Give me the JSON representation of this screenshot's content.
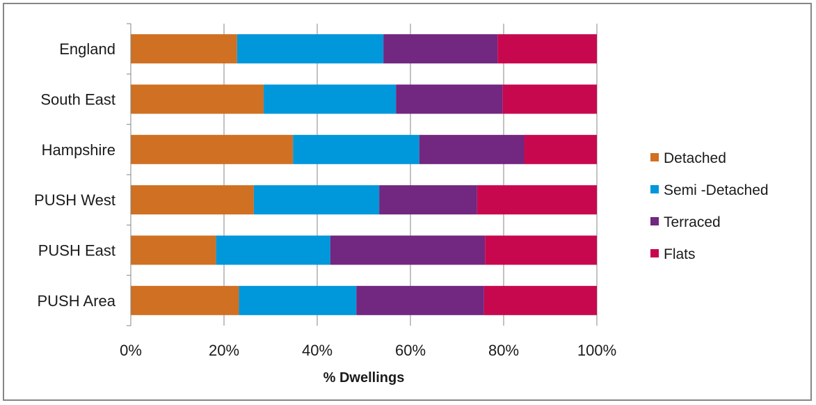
{
  "chart_data": {
    "type": "bar",
    "orientation": "horizontal",
    "stacked": "percent",
    "categories": [
      "England",
      "South East",
      "Hampshire",
      "PUSH West",
      "PUSH East",
      "PUSH Area"
    ],
    "series": [
      {
        "name": "Detached",
        "color": "#d07022",
        "values": [
          22.8,
          28.5,
          34.8,
          26.4,
          18.3,
          23.2
        ]
      },
      {
        "name": "Semi -Detached",
        "color": "#0097db",
        "values": [
          31.4,
          28.4,
          27.1,
          26.9,
          24.5,
          25.2
        ]
      },
      {
        "name": "Terraced",
        "color": "#722780",
        "values": [
          24.5,
          22.9,
          22.5,
          21.0,
          33.2,
          27.4
        ]
      },
      {
        "name": "Flats",
        "color": "#c8084e",
        "values": [
          21.3,
          20.2,
          15.6,
          25.7,
          24.0,
          24.2
        ]
      }
    ],
    "xlabel": "% Dwellings",
    "ylabel": "",
    "xlim": [
      0,
      100
    ],
    "x_ticks": [
      "0%",
      "20%",
      "40%",
      "60%",
      "80%",
      "100%"
    ],
    "grid": true,
    "legend_position": "right"
  }
}
